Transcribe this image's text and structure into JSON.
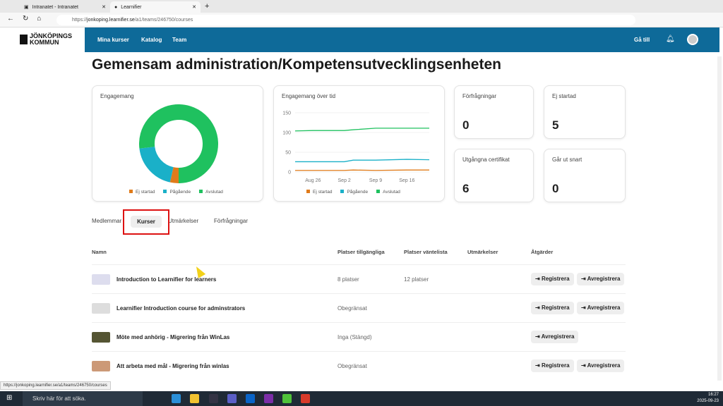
{
  "browser": {
    "tabs": [
      {
        "label": "Intranatet - Intranatet"
      },
      {
        "label": "Learnifier"
      }
    ],
    "url_prefix": "https://",
    "url_host": "jonkoping.learnifier.se",
    "url_path": "/a1/teams/246750/courses",
    "status_url": "https://jonkoping.learnifier.se/a1/teams/246750/courses"
  },
  "header": {
    "logo_line1": "JÖNKÖPINGS",
    "logo_line2": "KOMMUN",
    "nav": [
      "Mina kurser",
      "Katalog",
      "Team"
    ],
    "goto": "Gå till"
  },
  "page_title": "Gemensam administration/Kompetensutvecklingsenheten",
  "cards": {
    "engagement": "Engagemang",
    "engagement_time": "Engagemang över tid",
    "requests": {
      "label": "Förfrågningar",
      "value": "0"
    },
    "not_started": {
      "label": "Ej startad",
      "value": "5"
    },
    "expired": {
      "label": "Utgångna certifikat",
      "value": "6"
    },
    "expiring": {
      "label": "Går ut snart",
      "value": "0"
    }
  },
  "legend": [
    "Ej startad",
    "Pågående",
    "Avslutad"
  ],
  "colors": {
    "ej_startad": "#e07b1a",
    "pagaende": "#1ab0c8",
    "avslutad": "#1fc15f",
    "brand": "#0e6a99"
  },
  "chart_data": [
    {
      "type": "pie",
      "title": "Engagemang",
      "categories": [
        "Ej startad",
        "Pågående",
        "Avslutad"
      ],
      "values": [
        5,
        28,
        110
      ]
    },
    {
      "type": "line",
      "title": "Engagemang över tid",
      "yticks": [
        "0",
        "50",
        "100",
        "150"
      ],
      "ylim": [
        0,
        150
      ],
      "xticks": [
        "Aug 26",
        "Sep 2",
        "Sep 9",
        "Sep 16"
      ],
      "x": [
        "Aug 22",
        "Aug 26",
        "Sep 2",
        "Sep 4",
        "Sep 9",
        "Sep 16",
        "Sep 21"
      ],
      "series": [
        {
          "name": "Ej startad",
          "values": [
            4,
            4,
            4,
            5,
            4,
            5,
            5
          ]
        },
        {
          "name": "Pågående",
          "values": [
            26,
            26,
            26,
            30,
            30,
            32,
            31
          ]
        },
        {
          "name": "Avslutad",
          "values": [
            104,
            105,
            105,
            107,
            111,
            111,
            111
          ]
        }
      ]
    }
  ],
  "tabs": [
    "Medlemmar",
    "Kurser",
    "Utmärkelser",
    "Förfrågningar"
  ],
  "table": {
    "headers": [
      "Namn",
      "Platser tillgängliga",
      "Platser väntelista",
      "Utmärkelser",
      "Åtgärder"
    ],
    "rows": [
      {
        "name": "Introduction to Learnifier for learners",
        "available": "8 platser",
        "waitlist": "12 platser",
        "register": "Registrera",
        "unregister": "Avregistrera"
      },
      {
        "name": "Learnifier Introduction course for adminstrators",
        "available": "Obegränsat",
        "waitlist": "",
        "register": "Registrera",
        "unregister": "Avregistrera"
      },
      {
        "name": "Möte med anhörig - Migrering från WinLas",
        "available": "Inga (Stängd)",
        "waitlist": "",
        "register": "",
        "unregister": "Avregistrera"
      },
      {
        "name": "Att arbeta med mål - Migrering från winlas",
        "available": "Obegränsat",
        "waitlist": "",
        "register": "Registrera",
        "unregister": "Avregistrera"
      }
    ]
  },
  "taskbar": {
    "search": "Skriv här för att söka.",
    "time": "16:27",
    "date": "2025-09-23"
  }
}
